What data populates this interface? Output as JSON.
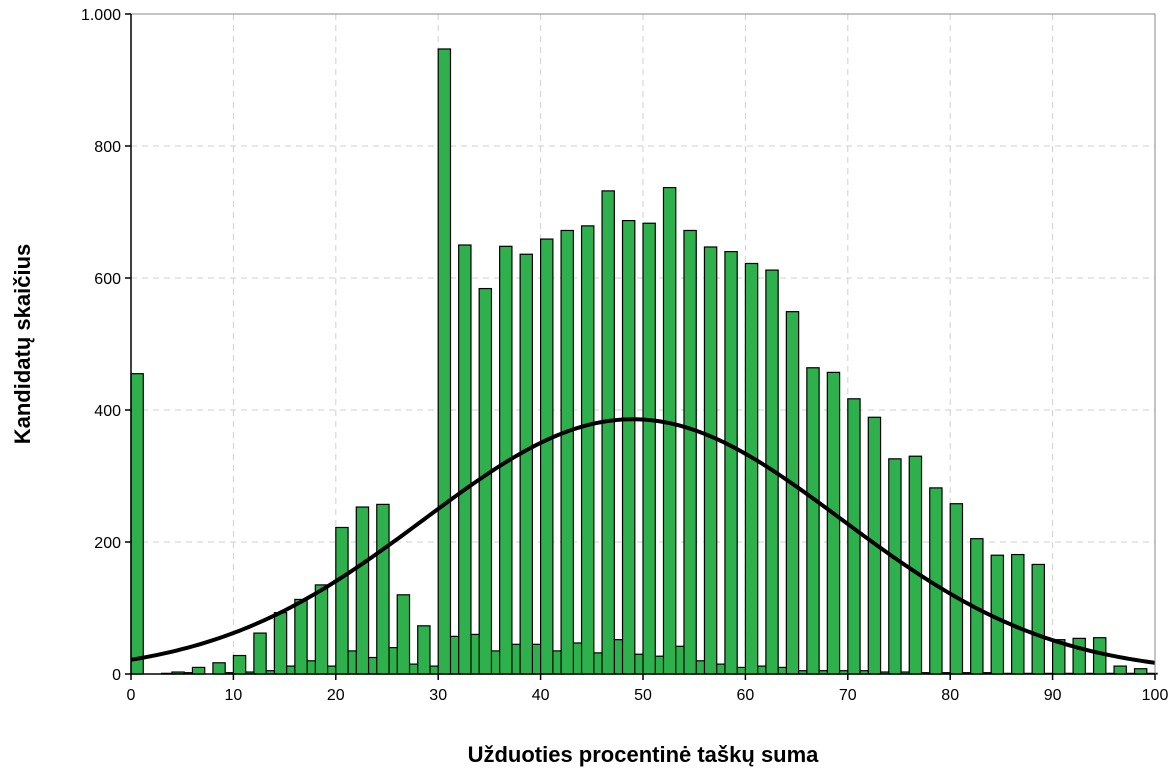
{
  "chart_data": {
    "type": "bar",
    "xlabel": "Užduoties procentinė taškų suma",
    "ylabel": "Kandidatų skaičius",
    "xlim": [
      0,
      100
    ],
    "ylim": [
      0,
      1000
    ],
    "xticks": [
      0,
      10,
      20,
      30,
      40,
      50,
      60,
      70,
      80,
      90,
      100
    ],
    "xtick_labels": [
      "0",
      "10",
      "20",
      "30",
      "40",
      "50",
      "60",
      "70",
      "80",
      "90",
      "100"
    ],
    "yticks": [
      0,
      200,
      400,
      600,
      800,
      1000
    ],
    "ytick_labels": [
      "0",
      "200",
      "400",
      "600",
      "800",
      "1.000"
    ],
    "grid": true,
    "bar_color": "#2eb14d",
    "bar_width": 1.2,
    "bars": {
      "x": [
        0.6,
        2.6,
        4.6,
        6.6,
        8.6,
        10.6,
        12.6,
        14.6,
        16.6,
        18.6,
        20.6,
        22.6,
        24.6,
        26.6,
        28.6,
        30.6,
        32.6,
        34.6,
        36.6,
        38.6,
        40.6,
        42.6,
        44.6,
        46.6,
        48.6,
        50.6,
        52.6,
        54.6,
        56.6,
        58.6,
        60.6,
        62.6,
        64.6,
        66.6,
        68.6,
        70.6,
        72.6,
        74.6,
        76.6,
        78.6,
        80.6,
        82.6,
        84.6,
        86.6,
        88.6,
        90.6,
        92.6,
        94.6,
        96.6,
        98.6
      ],
      "values": [
        455,
        0,
        3,
        10,
        17,
        28,
        62,
        93,
        113,
        135,
        222,
        253,
        257,
        120,
        73,
        947,
        650,
        584,
        648,
        636,
        659,
        672,
        679,
        732,
        687,
        683,
        737,
        672,
        647,
        640,
        622,
        612,
        549,
        464,
        457,
        417,
        389,
        326,
        330,
        282,
        258,
        205,
        180,
        181,
        166,
        52,
        54,
        55,
        12,
        8
      ]
    },
    "bars_secondary": {
      "x": [
        1.6,
        3.6,
        5.6,
        7.6,
        9.6,
        11.6,
        13.6,
        15.6,
        17.6,
        19.6,
        21.6,
        23.6,
        25.6,
        27.6,
        29.6,
        31.6,
        33.6,
        35.6,
        37.6,
        39.6,
        41.6,
        43.6,
        45.6,
        47.6,
        49.6,
        51.6,
        53.6,
        55.6,
        57.6,
        59.6,
        61.6,
        63.6,
        65.6,
        67.6,
        69.6,
        71.6,
        73.6,
        75.6,
        77.6,
        79.6,
        81.6,
        83.6,
        85.6,
        87.6,
        89.6,
        91.6,
        93.6,
        95.6,
        97.6,
        99.6
      ],
      "values": [
        0,
        1,
        2,
        0,
        2,
        3,
        5,
        12,
        20,
        12,
        35,
        25,
        40,
        15,
        12,
        57,
        60,
        35,
        45,
        45,
        35,
        47,
        32,
        52,
        30,
        27,
        42,
        20,
        15,
        10,
        12,
        10,
        5,
        5,
        5,
        5,
        3,
        3,
        2,
        2,
        2,
        2,
        1,
        1,
        1,
        1,
        1,
        1,
        1,
        1
      ]
    },
    "normal_curve": {
      "mean": 49,
      "sd": 20.4,
      "peak": 386
    }
  }
}
